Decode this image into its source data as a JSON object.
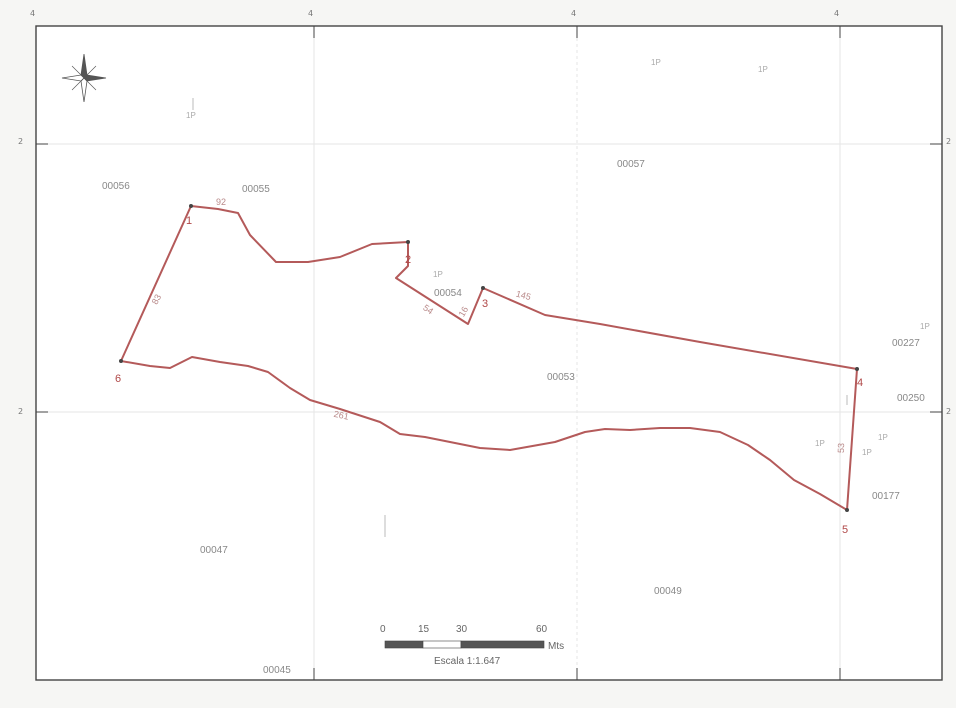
{
  "graticule": {
    "x_labels": [
      "4",
      "4",
      "4",
      "4"
    ],
    "y_labels": [
      "2",
      "2",
      "2",
      "2"
    ]
  },
  "parcels": [
    "00056",
    "00055",
    "00057",
    "00054",
    "00053",
    "00047",
    "00049",
    "00045",
    "00227",
    "00250",
    "00177"
  ],
  "vertices": [
    "1",
    "2",
    "3",
    "4",
    "5",
    "6"
  ],
  "segment_labels": [
    "83",
    "92",
    "54",
    "16",
    "145",
    "261",
    "53"
  ],
  "faint_marks": [
    "1P",
    "1P",
    "1P",
    "1P",
    "1P",
    "1P",
    "1P",
    "1P"
  ],
  "scale_bar": {
    "ticks": [
      "0",
      "15",
      "30",
      "60"
    ],
    "unit": "Mts",
    "caption": "Escala 1:1.647"
  },
  "colors": {
    "boundary": "#b45a5a",
    "frame": "#444444",
    "background": "#ffffff"
  },
  "icons": {
    "north_arrow": "compass-rose-icon"
  }
}
